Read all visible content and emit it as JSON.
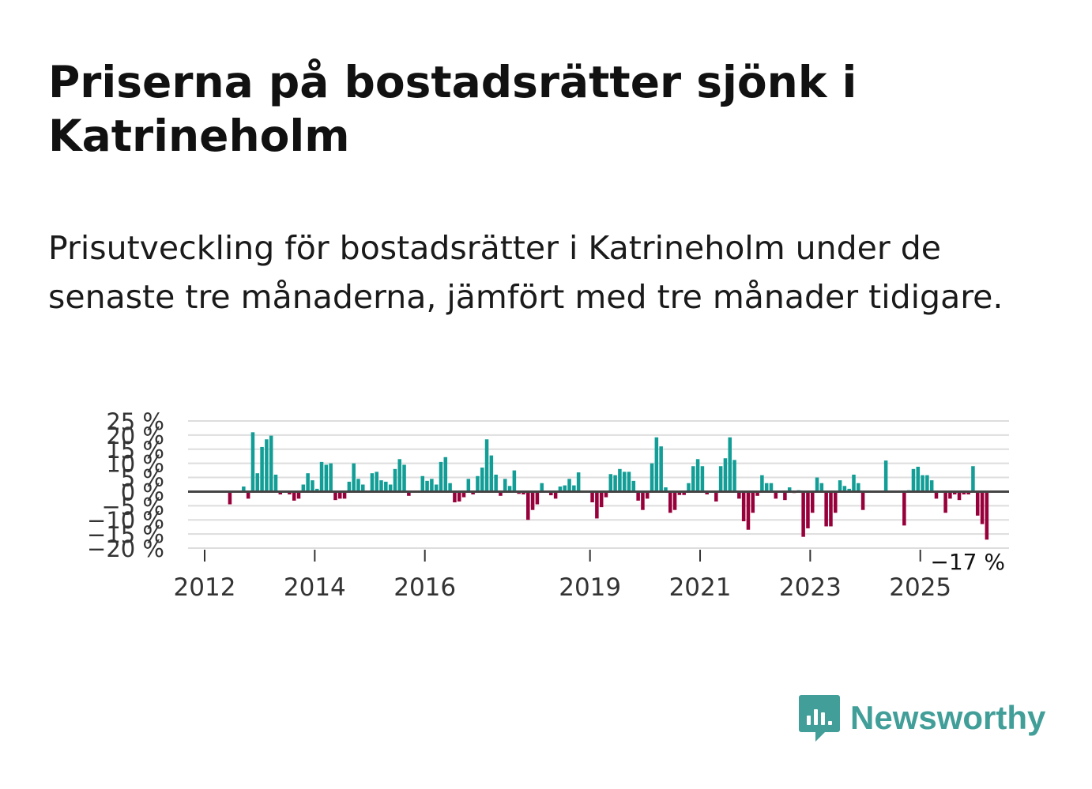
{
  "title": "Priserna på bostadsrätter sjönk i Katrineholm",
  "subtitle": "Prisutveckling för bostadsrätter i Katrineholm under de senaste tre månaderna, jämfört med tre månader tidigare.",
  "brand": {
    "name": "Newsworthy",
    "color": "#419e98"
  },
  "colors": {
    "positive": "#129e96",
    "negative": "#97003a",
    "zero_line": "#444444",
    "grid": "#dddddd"
  },
  "chart_data": {
    "type": "bar",
    "title": "",
    "xlabel": "",
    "ylabel": "",
    "ylim": [
      -20,
      25
    ],
    "yticks": [
      25,
      20,
      15,
      10,
      5,
      0,
      -5,
      -10,
      -15,
      -20
    ],
    "ytick_labels": [
      "25 %",
      "20 %",
      "15 %",
      "10 %",
      "5 %",
      "0 %",
      "−5 %",
      "−10 %",
      "−15 %",
      "−20 %"
    ],
    "xticks": [
      2012,
      2014,
      2016,
      2019,
      2021,
      2023,
      2025
    ],
    "xtick_labels": [
      "2012",
      "2014",
      "2016",
      "2019",
      "2021",
      "2023",
      "2025"
    ],
    "start_year": 2012.0,
    "step_years": 0.08333,
    "last_value_label": "−17 %",
    "values": [
      0,
      0,
      0,
      0,
      0,
      -4.5,
      0,
      0,
      1.8,
      -2.5,
      21,
      6.5,
      15.8,
      18.5,
      19.8,
      6,
      -1,
      0,
      -1,
      -3.2,
      -2.5,
      2.5,
      6.5,
      4,
      1,
      10.5,
      9.5,
      10,
      -3,
      -2.5,
      -2.5,
      3.5,
      10,
      4.5,
      2.5,
      0,
      6.5,
      7,
      4,
      3.5,
      2.5,
      8,
      11.5,
      9.5,
      -1.5,
      0,
      0,
      5.5,
      3.8,
      4.5,
      2.5,
      10.5,
      12.2,
      3,
      -3.8,
      -3.5,
      -2,
      4.5,
      -1,
      5.5,
      8.5,
      18.5,
      12.8,
      6,
      -1.5,
      4.5,
      2,
      7.5,
      -0.8,
      -1,
      -10,
      -6.5,
      -4.5,
      3,
      0,
      -1.3,
      -2.5,
      1.8,
      2.2,
      4.5,
      2.2,
      6.8,
      0,
      0,
      -3.8,
      -9.5,
      -5.5,
      -2,
      6.2,
      5.8,
      8,
      7,
      7,
      3.8,
      -3.2,
      -6.5,
      -2.5,
      10,
      19.2,
      16,
      1.5,
      -7.5,
      -6.5,
      -1.2,
      -1.2,
      3,
      9,
      11.5,
      9,
      -1,
      0,
      -3.5,
      9,
      11.8,
      19.2,
      11.2,
      -2.5,
      -10.5,
      -13.5,
      -7.5,
      -1.5,
      5.8,
      3,
      3,
      -2.5,
      0,
      -3,
      1.5,
      -0.5,
      0.5,
      -16,
      -13,
      -7.5,
      5,
      3,
      -12.3,
      -12.3,
      -7.5,
      4,
      2,
      1,
      6,
      3,
      -6.5,
      0,
      0,
      0,
      0,
      11,
      0,
      0,
      0,
      -12,
      0.5,
      8,
      8.8,
      5.8,
      5.8,
      4,
      -2.5,
      0,
      -7.5,
      -2.5,
      -1,
      -3,
      -1,
      -1,
      9,
      -8.5,
      -11.5,
      -17
    ]
  }
}
